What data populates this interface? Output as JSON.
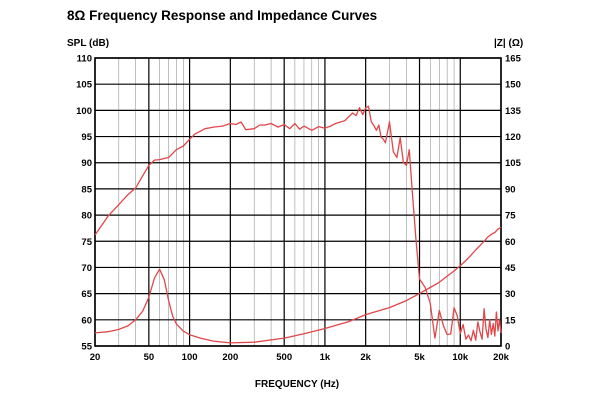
{
  "chart_data": {
    "type": "line",
    "title": "8Ω Frequency Response and Impedance Curves",
    "xlabel": "FREQUENCY (Hz)",
    "ylabel_left": "SPL (dB)",
    "ylabel_right": "|Z| (Ω)",
    "x_scale": "log",
    "xlim": [
      20,
      20000
    ],
    "ylim_left": [
      55,
      110
    ],
    "ylim_right": [
      0,
      165
    ],
    "grid": true,
    "legend": "none",
    "colors": {
      "curve": "#e0474a",
      "grid": "#000000",
      "frame": "#000000"
    },
    "x_ticks": [
      {
        "value": 20,
        "label": "20"
      },
      {
        "value": 50,
        "label": "50"
      },
      {
        "value": 100,
        "label": "100"
      },
      {
        "value": 200,
        "label": "200"
      },
      {
        "value": 500,
        "label": "500"
      },
      {
        "value": 1000,
        "label": "1k"
      },
      {
        "value": 2000,
        "label": "2k"
      },
      {
        "value": 5000,
        "label": "5k"
      },
      {
        "value": 10000,
        "label": "10k"
      },
      {
        "value": 20000,
        "label": "20k"
      }
    ],
    "y_ticks_left": [
      110,
      105,
      100,
      95,
      90,
      85,
      80,
      75,
      70,
      65,
      60,
      55
    ],
    "y_ticks_right": [
      165,
      150,
      135,
      120,
      105,
      90,
      75,
      60,
      45,
      30,
      15,
      0
    ],
    "series": [
      {
        "axis": "left",
        "unit": "dB",
        "x": [
          20,
          25,
          30,
          35,
          40,
          45,
          50,
          55,
          60,
          70,
          80,
          90,
          100,
          110,
          130,
          150,
          175,
          200,
          220,
          240,
          260,
          300,
          330,
          360,
          400,
          450,
          500,
          550,
          600,
          650,
          700,
          800,
          900,
          1000,
          1100,
          1200,
          1400,
          1600,
          1700,
          1800,
          1900,
          2000,
          2100,
          2200,
          2300,
          2400,
          2500,
          2600,
          2700,
          2800,
          3000,
          3200,
          3400,
          3600,
          3800,
          4000,
          4200,
          4400,
          4700,
          5000,
          5500,
          6000,
          6500,
          7000,
          7500,
          8000,
          8500,
          9000,
          9500,
          10000,
          10500,
          11000,
          11500,
          12000,
          12500,
          13000,
          13500,
          14000,
          14500,
          15000,
          15500,
          16000,
          16500,
          17000,
          17500,
          18000,
          18500,
          19000,
          19500,
          20000
        ],
        "y": [
          76.2,
          79.8,
          82,
          83.9,
          85.2,
          87.5,
          89.5,
          90.5,
          90.6,
          91,
          92.5,
          93.2,
          94.5,
          95.5,
          96.5,
          96.8,
          97,
          97.5,
          97.3,
          97.8,
          96.3,
          96.5,
          97.2,
          97.2,
          97.5,
          96.8,
          97.3,
          96.5,
          97.5,
          96.4,
          97,
          96.2,
          96.9,
          96.6,
          97,
          97.5,
          98,
          99.5,
          99,
          100.5,
          99.2,
          100.5,
          100.8,
          97.8,
          97.1,
          96.2,
          97.2,
          94.9,
          94.5,
          93.8,
          97.8,
          92.1,
          91,
          94.8,
          90,
          89.5,
          92.5,
          85.2,
          75.5,
          67.8,
          66.2,
          63.2,
          56.5,
          61.8,
          58.9,
          57.2,
          57.3,
          62.3,
          60.8,
          57.4,
          59.1,
          56.3,
          57.1,
          56,
          58,
          56.1,
          59.6,
          57.7,
          56.3,
          62.1,
          58.2,
          56.6,
          60,
          57.2,
          59.3,
          56.9,
          61.5,
          57.9,
          60.1,
          57.5
        ]
      },
      {
        "axis": "right",
        "unit": "Ω",
        "x": [
          20,
          25,
          30,
          35,
          40,
          45,
          50,
          55,
          60,
          65,
          70,
          75,
          80,
          90,
          100,
          120,
          150,
          200,
          300,
          500,
          700,
          1000,
          1500,
          2000,
          3000,
          4000,
          5000,
          6000,
          7000,
          8000,
          9000,
          10000,
          11000,
          12000,
          13000,
          14000,
          15000,
          16000,
          17000,
          18000,
          19000,
          20000
        ],
        "y": [
          7.5,
          8.2,
          9.5,
          11.5,
          15,
          20,
          28,
          39,
          44,
          38,
          26,
          17,
          12.5,
          8.5,
          6.5,
          4.5,
          2.8,
          1.8,
          2.2,
          4.5,
          7,
          10,
          14,
          18,
          22,
          26,
          30,
          33.5,
          36.5,
          40,
          43,
          46,
          49,
          52,
          55,
          57.5,
          60,
          62.5,
          64,
          65,
          67,
          68
        ]
      }
    ]
  }
}
